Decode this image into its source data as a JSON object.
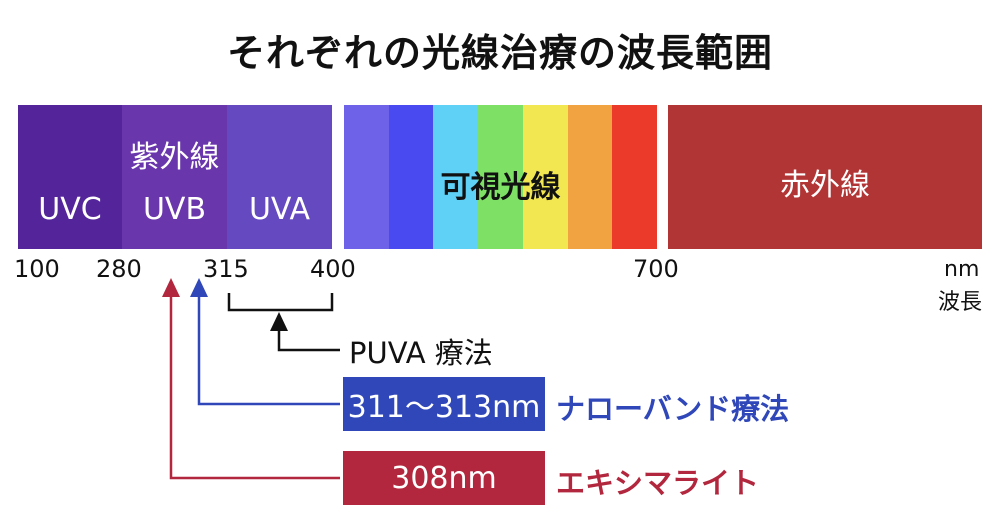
{
  "title": "それぞれの光線治療の波長範囲",
  "colors": {
    "uvc": "#54259a",
    "uvb": "#6a36ac",
    "uva": "#6549c0",
    "visible": [
      "#6e63e8",
      "#4a4af1",
      "#5fd0f6",
      "#7ee065",
      "#f2e751",
      "#f2a341",
      "#ec3a2a"
    ],
    "infrared": "#b23535",
    "narrowband": "#2f47b8",
    "excimer": "#b2273d",
    "puva_line": "#111111"
  },
  "bands": {
    "uv_group": "紫外線",
    "uvc": "UVC",
    "uvb": "UVB",
    "uva": "UVA",
    "visible": "可視光線",
    "infrared": "赤外線"
  },
  "ticks": [
    "100",
    "280",
    "315",
    "400",
    "700"
  ],
  "axis_unit": "nm",
  "axis_label": "波長",
  "therapies": {
    "puva": "PUVA 療法",
    "narrowband_range": "311～313nm",
    "narrowband_name": "ナローバンド療法",
    "excimer_value": "308nm",
    "excimer_name": "エキシマライト"
  }
}
